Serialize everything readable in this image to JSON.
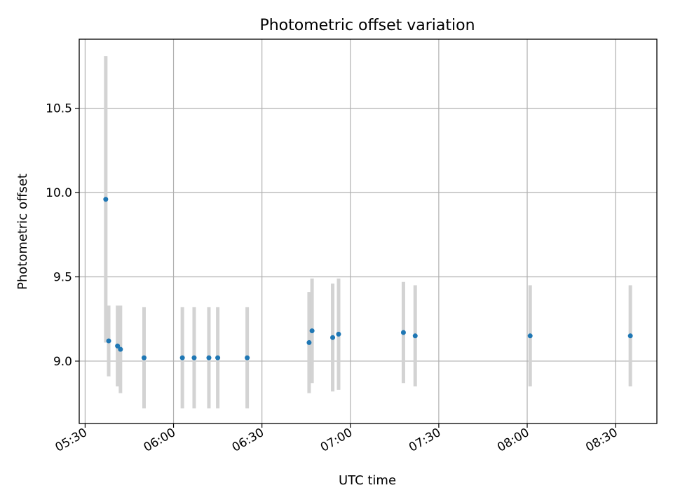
{
  "chart_data": {
    "type": "scatter",
    "title": "Photometric offset variation",
    "xlabel": "UTC time",
    "ylabel": "Photometric offset",
    "x_ticks": [
      "05:30",
      "06:00",
      "06:30",
      "07:00",
      "07:30",
      "08:00",
      "08:30"
    ],
    "y_ticks": [
      "9.0",
      "9.5",
      "10.0",
      "10.5"
    ],
    "xlim": [
      "05:28",
      "08:44"
    ],
    "ylim": [
      8.63,
      10.91
    ],
    "grid": true,
    "colors": {
      "marker": "#1f77b4",
      "errorbar": "#d3d3d3",
      "grid": "#b0b0b0"
    },
    "points": [
      {
        "t": "05:37",
        "y": 9.96,
        "err": 0.85
      },
      {
        "t": "05:38",
        "y": 9.12,
        "err": 0.21
      },
      {
        "t": "05:41",
        "y": 9.09,
        "err": 0.24
      },
      {
        "t": "05:42",
        "y": 9.07,
        "err": 0.26
      },
      {
        "t": "05:50",
        "y": 9.02,
        "err": 0.3
      },
      {
        "t": "06:03",
        "y": 9.02,
        "err": 0.3
      },
      {
        "t": "06:07",
        "y": 9.02,
        "err": 0.3
      },
      {
        "t": "06:12",
        "y": 9.02,
        "err": 0.3
      },
      {
        "t": "06:15",
        "y": 9.02,
        "err": 0.3
      },
      {
        "t": "06:25",
        "y": 9.02,
        "err": 0.3
      },
      {
        "t": "06:46",
        "y": 9.11,
        "err": 0.3
      },
      {
        "t": "06:47",
        "y": 9.18,
        "err": 0.31
      },
      {
        "t": "06:54",
        "y": 9.14,
        "err": 0.32
      },
      {
        "t": "06:56",
        "y": 9.16,
        "err": 0.33
      },
      {
        "t": "07:18",
        "y": 9.17,
        "err": 0.3
      },
      {
        "t": "07:22",
        "y": 9.15,
        "err": 0.3
      },
      {
        "t": "08:01",
        "y": 9.15,
        "err": 0.3
      },
      {
        "t": "08:35",
        "y": 9.15,
        "err": 0.3
      }
    ]
  }
}
